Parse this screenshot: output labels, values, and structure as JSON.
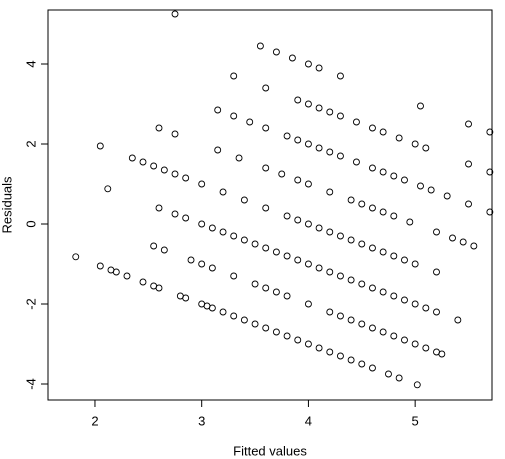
{
  "chart_data": {
    "type": "scatter",
    "x_label": "Fitted values",
    "y_label": "Residuals",
    "xlim": [
      1.56,
      5.72
    ],
    "ylim": [
      -4.4,
      5.35
    ],
    "xticks": [
      2,
      3,
      4,
      5
    ],
    "yticks": [
      -4,
      -2,
      0,
      2,
      4
    ],
    "color": "#000000",
    "x": [
      1.82,
      2.05,
      2.15,
      2.2,
      2.3,
      2.45,
      2.55,
      2.6,
      2.8,
      2.85,
      3.0,
      3.05,
      3.1,
      3.2,
      3.3,
      3.4,
      3.5,
      3.6,
      3.7,
      3.8,
      3.9,
      4.0,
      4.1,
      4.2,
      4.3,
      4.4,
      4.5,
      4.6,
      4.75,
      4.85,
      5.02,
      2.55,
      2.65,
      2.9,
      3.0,
      3.1,
      3.3,
      3.5,
      3.6,
      3.7,
      3.8,
      4.0,
      4.2,
      4.3,
      4.4,
      4.5,
      4.6,
      4.7,
      4.8,
      4.9,
      5.0,
      5.1,
      5.2,
      5.25,
      2.12,
      2.6,
      2.75,
      2.85,
      3.0,
      3.1,
      3.2,
      3.3,
      3.4,
      3.5,
      3.6,
      3.7,
      3.8,
      3.9,
      4.0,
      4.1,
      4.2,
      4.3,
      4.4,
      4.5,
      4.6,
      4.7,
      4.8,
      4.9,
      5.0,
      5.1,
      5.2,
      5.4,
      2.05,
      2.35,
      2.45,
      2.55,
      2.65,
      2.75,
      2.85,
      3.0,
      3.2,
      3.4,
      3.6,
      3.8,
      3.9,
      4.0,
      4.1,
      4.2,
      4.3,
      4.4,
      4.5,
      4.6,
      4.7,
      4.8,
      4.9,
      5.0,
      5.2,
      2.6,
      2.75,
      3.15,
      3.35,
      3.6,
      3.75,
      3.9,
      4.0,
      4.2,
      4.4,
      4.5,
      4.6,
      4.7,
      4.8,
      4.95,
      5.2,
      5.35,
      5.45,
      5.55,
      3.15,
      3.3,
      3.45,
      3.6,
      3.8,
      3.9,
      4.0,
      4.1,
      4.2,
      4.3,
      4.45,
      4.6,
      4.7,
      4.8,
      4.9,
      5.05,
      5.15,
      5.3,
      5.5,
      5.7,
      3.3,
      3.6,
      3.9,
      4.0,
      4.1,
      4.2,
      4.3,
      4.45,
      4.6,
      4.7,
      4.85,
      5.0,
      5.1,
      5.5,
      5.7,
      2.75,
      3.55,
      3.7,
      3.85,
      4.0,
      4.1,
      4.3,
      5.05,
      5.5,
      5.7
    ],
    "y": [
      -0.82,
      -1.05,
      -1.15,
      -1.2,
      -1.3,
      -1.45,
      -1.55,
      -1.6,
      -1.8,
      -1.85,
      -2,
      -2.05,
      -2.1,
      -2.2,
      -2.3,
      -2.4,
      -2.5,
      -2.6,
      -2.7,
      -2.8,
      -2.9,
      -3,
      -3.1,
      -3.2,
      -3.3,
      -3.4,
      -3.5,
      -3.6,
      -3.75,
      -3.85,
      -4.02,
      -0.55,
      -0.65,
      -0.9,
      -1,
      -1.1,
      -1.3,
      -1.5,
      -1.6,
      -1.7,
      -1.8,
      -2,
      -2.2,
      -2.3,
      -2.4,
      -2.5,
      -2.6,
      -2.7,
      -2.8,
      -2.9,
      -3,
      -3.1,
      -3.2,
      -3.25,
      0.88,
      0.4,
      0.25,
      0.15,
      0,
      -0.1,
      -0.2,
      -0.3,
      -0.4,
      -0.5,
      -0.6,
      -0.7,
      -0.8,
      -0.9,
      -1,
      -1.1,
      -1.2,
      -1.3,
      -1.4,
      -1.5,
      -1.6,
      -1.7,
      -1.8,
      -1.9,
      -2,
      -2.1,
      -2.2,
      -2.4,
      1.95,
      1.65,
      1.55,
      1.45,
      1.35,
      1.25,
      1.15,
      1,
      0.8,
      0.6,
      0.4,
      0.2,
      0.1,
      0,
      -0.1,
      -0.2,
      -0.3,
      -0.4,
      -0.5,
      -0.6,
      -0.7,
      -0.8,
      -0.9,
      -1,
      -1.2,
      2.4,
      2.25,
      1.85,
      1.65,
      1.4,
      1.25,
      1.1,
      1,
      0.8,
      0.6,
      0.5,
      0.4,
      0.3,
      0.2,
      0.05,
      -0.2,
      -0.35,
      -0.45,
      -0.55,
      2.85,
      2.7,
      2.55,
      2.4,
      2.2,
      2.1,
      2,
      1.9,
      1.8,
      1.7,
      1.55,
      1.4,
      1.3,
      1.2,
      1.1,
      0.95,
      0.85,
      0.7,
      0.5,
      0.3,
      3.7,
      3.4,
      3.1,
      3,
      2.9,
      2.8,
      2.7,
      2.55,
      2.4,
      2.3,
      2.15,
      2,
      1.9,
      1.5,
      1.3,
      5.25,
      4.45,
      4.3,
      4.15,
      4,
      3.9,
      3.7,
      2.95,
      2.5,
      2.3
    ]
  }
}
